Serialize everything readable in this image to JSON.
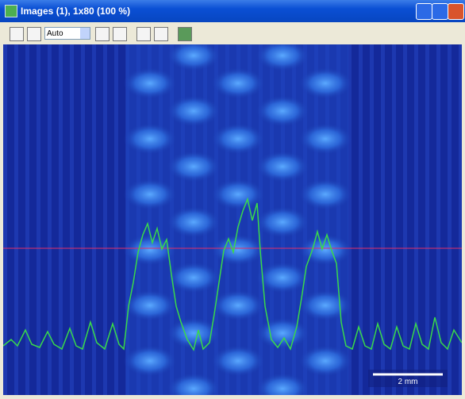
{
  "window": {
    "title": "Images (1), 1x80 (100 %)"
  },
  "toolbar": {
    "zoom": "Auto"
  },
  "image": {
    "scale_bar": "2 mm"
  }
}
